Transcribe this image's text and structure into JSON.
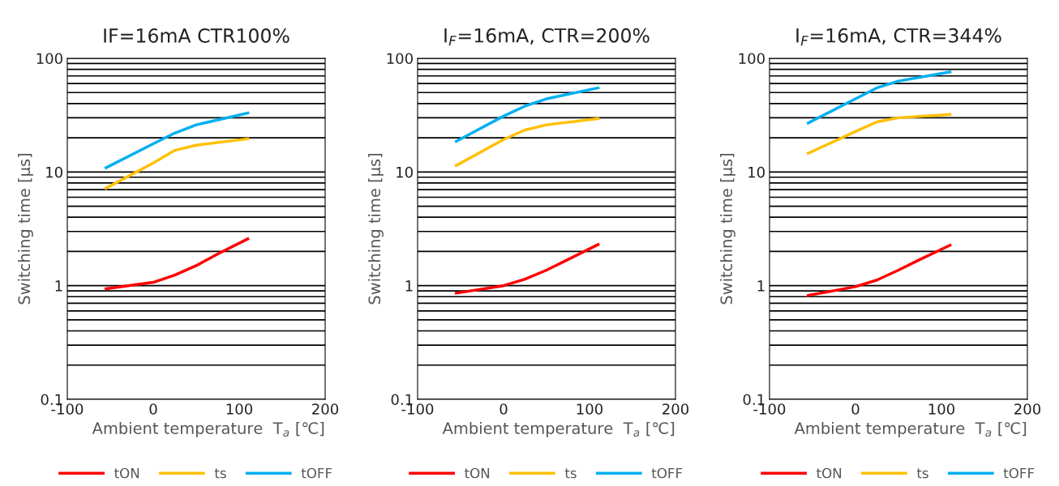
{
  "chart_data": [
    {
      "type": "line",
      "title": "IF=16mA CTR100%",
      "xlabel": "Ambient temperature  T$_{a}$ [℃]",
      "ylabel": "Switching time [μs]",
      "log": "y",
      "xlim": [
        -100,
        200
      ],
      "xticks": [
        -100,
        0,
        100,
        200
      ],
      "ylim": [
        0.1,
        100
      ],
      "yticks": [
        0.1,
        1,
        10,
        100
      ],
      "grid": "y",
      "legend": "bottom",
      "marker": "none",
      "line_style": "solid",
      "series": [
        {
          "name": "tON",
          "color": "#ff0000",
          "x": [
            -55,
            0,
            25,
            50,
            75,
            110
          ],
          "values": [
            0.94,
            1.07,
            1.24,
            1.5,
            1.9,
            2.58
          ]
        },
        {
          "name": "ts",
          "color": "#ffc000",
          "x": [
            -55,
            0,
            25,
            50,
            110
          ],
          "values": [
            7.2,
            12,
            15.5,
            17.2,
            19.6
          ]
        },
        {
          "name": "tOFF",
          "color": "#00b0f0",
          "x": [
            -55,
            0,
            25,
            50,
            110
          ],
          "values": [
            10.9,
            17.7,
            22,
            26,
            33
          ]
        }
      ]
    },
    {
      "type": "line",
      "title": "I$_{F}$=16mA, CTR=200%",
      "xlabel": "Ambient temperature  T$_{a}$ [℃]",
      "ylabel": "Switching time [μs]",
      "log": "y",
      "xlim": [
        -100,
        200
      ],
      "xticks": [
        -100,
        0,
        100,
        200
      ],
      "ylim": [
        0.1,
        100
      ],
      "yticks": [
        0.1,
        1,
        10,
        100
      ],
      "grid": "y",
      "legend": "bottom",
      "marker": "none",
      "line_style": "solid",
      "series": [
        {
          "name": "tON",
          "color": "#ff0000",
          "x": [
            -55,
            0,
            25,
            50,
            75,
            110
          ],
          "values": [
            0.86,
            1.0,
            1.14,
            1.37,
            1.7,
            2.3
          ]
        },
        {
          "name": "ts",
          "color": "#ffc000",
          "x": [
            -55,
            0,
            25,
            50,
            110
          ],
          "values": [
            11.4,
            19.3,
            23.4,
            26,
            29.5
          ]
        },
        {
          "name": "tOFF",
          "color": "#00b0f0",
          "x": [
            -55,
            0,
            25,
            50,
            110
          ],
          "values": [
            18.6,
            31,
            38,
            44,
            55
          ]
        }
      ]
    },
    {
      "type": "line",
      "title": "I$_{F}$=16mA, CTR=344%",
      "xlabel": "Ambient temperature  T$_{a}$ [℃]",
      "ylabel": "Switching time [μs]",
      "log": "y",
      "xlim": [
        -100,
        200
      ],
      "xticks": [
        -100,
        0,
        100,
        200
      ],
      "ylim": [
        0.1,
        100
      ],
      "yticks": [
        0.1,
        1,
        10,
        100
      ],
      "grid": "y",
      "legend": "bottom",
      "marker": "none",
      "line_style": "solid",
      "series": [
        {
          "name": "tON",
          "color": "#ff0000",
          "x": [
            -55,
            0,
            25,
            50,
            75,
            110
          ],
          "values": [
            0.82,
            0.98,
            1.12,
            1.37,
            1.7,
            2.27
          ]
        },
        {
          "name": "ts",
          "color": "#ffc000",
          "x": [
            -55,
            0,
            25,
            50,
            110
          ],
          "values": [
            14.6,
            22.7,
            27.6,
            30,
            32
          ]
        },
        {
          "name": "tOFF",
          "color": "#00b0f0",
          "x": [
            -55,
            0,
            25,
            50,
            110
          ],
          "values": [
            27,
            44,
            55,
            63,
            76
          ]
        }
      ]
    }
  ]
}
